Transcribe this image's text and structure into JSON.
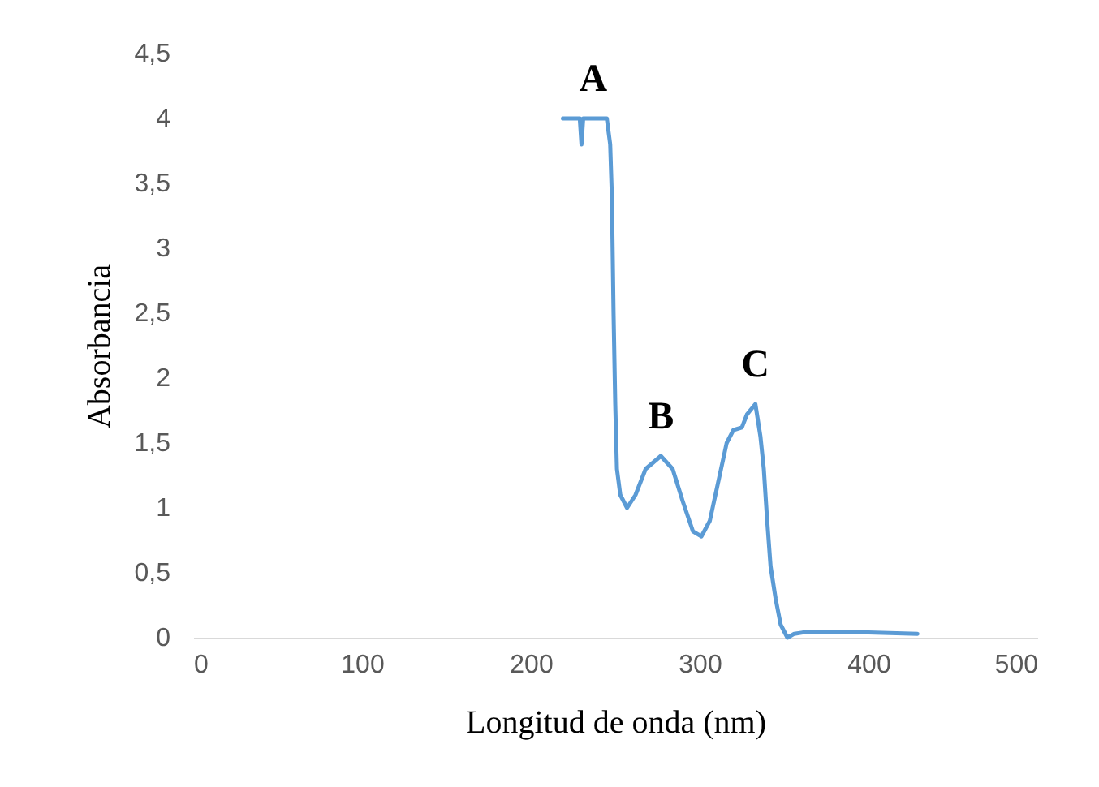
{
  "chart_data": {
    "type": "line",
    "xlabel": "Longitud de onda (nm)",
    "ylabel": "Absorbancia",
    "x": [
      219,
      228,
      229,
      230,
      231,
      233,
      245,
      247,
      248,
      249,
      250,
      251,
      253,
      257,
      262,
      268,
      277,
      284,
      290,
      296,
      301,
      306,
      311,
      316,
      320,
      325,
      328,
      333,
      336,
      338,
      340,
      342,
      345,
      348,
      352,
      356,
      361,
      380,
      400,
      429
    ],
    "series": [
      {
        "color": "#5b9bd5",
        "values": [
          4,
          4,
          4,
          3.8,
          4,
          4,
          4,
          3.8,
          3.4,
          2.5,
          1.8,
          1.3,
          1.1,
          1.0,
          1.1,
          1.3,
          1.4,
          1.3,
          1.05,
          0.82,
          0.78,
          0.9,
          1.2,
          1.5,
          1.6,
          1.62,
          1.72,
          1.8,
          1.55,
          1.3,
          0.9,
          0.55,
          0.3,
          0.1,
          0,
          0.03,
          0.04,
          0.04,
          0.04,
          0.03
        ]
      }
    ],
    "xlim": [
      0,
      500
    ],
    "ylim": [
      0,
      4.5
    ],
    "xticks": [
      0,
      100,
      200,
      300,
      400,
      500
    ],
    "yticks": [
      0,
      {
        "value": 0.5,
        "label": "0,5"
      },
      1,
      {
        "value": 1.5,
        "label": "1,5"
      },
      2,
      {
        "value": 2.5,
        "label": "2,5"
      },
      3,
      {
        "value": 3.5,
        "label": "3,5"
      },
      4,
      {
        "value": 4.5,
        "label": "4,5"
      }
    ],
    "line_style": "solid",
    "annotations": [
      {
        "text": "A",
        "x": 237,
        "y": 4
      },
      {
        "text": "B",
        "x": 277,
        "y": 1.4
      },
      {
        "text": "C",
        "x": 333,
        "y": 1.8
      }
    ]
  }
}
